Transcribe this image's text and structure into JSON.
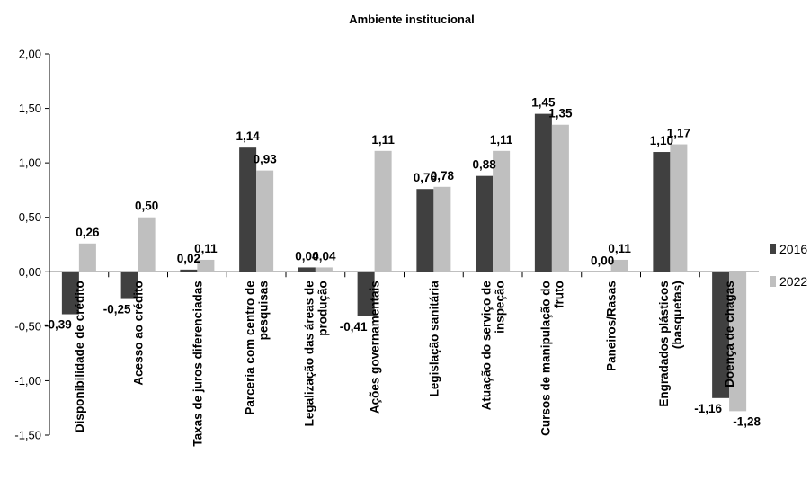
{
  "chart_data": {
    "type": "bar",
    "title": "Ambiente institucional",
    "xlabel": "",
    "ylabel": "",
    "ylim": [
      -1.5,
      2.0
    ],
    "yticks": [
      "2,00",
      "1,50",
      "1,00",
      "0,50",
      "0,00",
      "-0,50",
      "-1,00",
      "-1,50"
    ],
    "grid": false,
    "legend_position": "right",
    "categories": [
      [
        "Disponibilidade de crédito"
      ],
      [
        "Acesso ao crédito"
      ],
      [
        "Taxas de juros diferenciadas"
      ],
      [
        "Parceria com centro de",
        "pesquisas"
      ],
      [
        "Legalização das áreas de",
        "produção"
      ],
      [
        "Ações governamentais"
      ],
      [
        "Legislação sanitária"
      ],
      [
        "Atuação do serviço de",
        "inspeção"
      ],
      [
        "Cursos de manipulação do",
        "fruto"
      ],
      [
        "Paneiros/Rasas"
      ],
      [
        "Engradados plásticos",
        "(basquetas)"
      ],
      [
        "Doença de chagas"
      ]
    ],
    "series": [
      {
        "name": "2016",
        "color": "#404040",
        "values": [
          -0.39,
          -0.25,
          0.02,
          1.14,
          0.04,
          -0.41,
          0.76,
          0.88,
          1.45,
          0.0,
          1.1,
          -1.16
        ],
        "labels": [
          "-0,39",
          "-0,25",
          "0,02",
          "1,14",
          "0,04",
          "-0,41",
          "0,76",
          "0,88",
          "1,45",
          "0,00",
          "1,10",
          "-1,16"
        ]
      },
      {
        "name": "2022",
        "color": "#bfbfbf",
        "values": [
          0.26,
          0.5,
          0.11,
          0.93,
          0.04,
          1.11,
          0.78,
          1.11,
          1.35,
          0.11,
          1.17,
          -1.28
        ],
        "labels": [
          "0,26",
          "0,50",
          "0,11",
          "0,93",
          "0,04",
          "1,11",
          "0,78",
          "1,11",
          "1,35",
          "0,11",
          "1,17",
          "-1,28"
        ]
      }
    ]
  }
}
